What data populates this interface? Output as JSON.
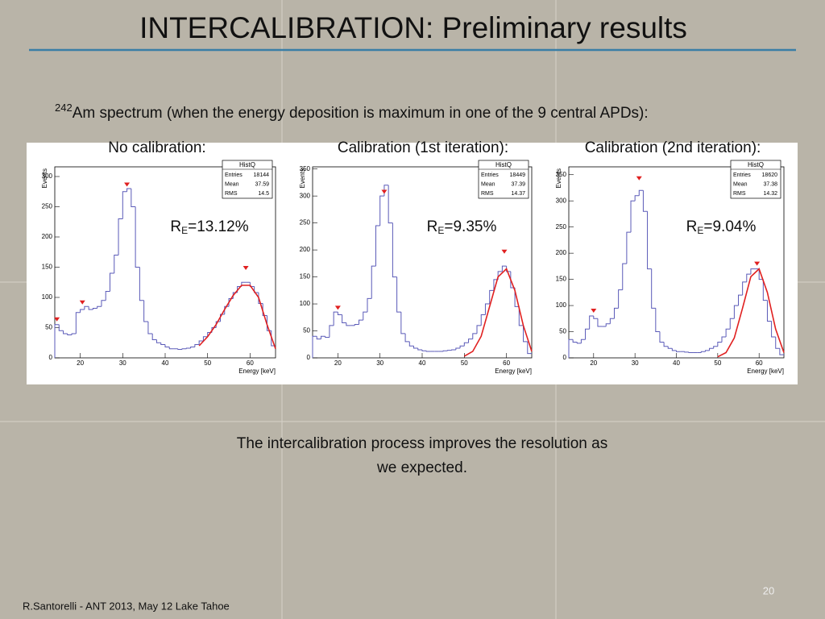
{
  "header": {
    "title": "INTERCALIBRATION: Preliminary results"
  },
  "subtitle": {
    "superscript": "242",
    "text": "Am spectrum (when the energy deposition is maximum in one of the 9 central APDs):"
  },
  "panels": [
    {
      "label": "No calibration:",
      "resolution": {
        "symbol": "R",
        "subscript": "E",
        "value": "=13.12%"
      },
      "chart_data": {
        "type": "histogram",
        "xlabel": "Energy [keV]",
        "ylabel": "Events",
        "stats": {
          "title": "HistQ",
          "rows": [
            [
              "Entries",
              "18144"
            ],
            [
              "Mean",
              "37.59"
            ],
            [
              "RMS",
              "14.5"
            ]
          ]
        },
        "bins": [
          14,
          15,
          16,
          17,
          18,
          19,
          20,
          21,
          22,
          23,
          24,
          25,
          26,
          27,
          28,
          29,
          30,
          31,
          32,
          33,
          34,
          35,
          36,
          37,
          38,
          39,
          40,
          41,
          42,
          43,
          44,
          45,
          46,
          47,
          48,
          49,
          50,
          51,
          52,
          53,
          54,
          55,
          56,
          57,
          58,
          59,
          60,
          61,
          62,
          63,
          64,
          65,
          66
        ],
        "values": [
          55,
          45,
          40,
          38,
          40,
          75,
          80,
          85,
          80,
          82,
          85,
          95,
          110,
          140,
          170,
          230,
          275,
          280,
          250,
          150,
          95,
          60,
          40,
          30,
          25,
          22,
          18,
          15,
          15,
          14,
          15,
          16,
          18,
          22,
          28,
          35,
          42,
          50,
          60,
          72,
          85,
          98,
          108,
          118,
          125,
          125,
          118,
          108,
          90,
          70,
          45,
          20
        ],
        "color": "#5a5ab8",
        "xlim": [
          14,
          66
        ],
        "xticks": [
          20,
          30,
          40,
          50,
          60
        ],
        "ylim": [
          0,
          316
        ],
        "yticks": [
          0,
          50,
          100,
          150,
          200,
          250,
          300
        ],
        "fit": {
          "color": "#e02020",
          "x": [
            48,
            50,
            52,
            54,
            56,
            58,
            60,
            62,
            64,
            66
          ],
          "values": [
            20,
            35,
            55,
            80,
            103,
            120,
            120,
            100,
            55,
            15
          ]
        },
        "peaks": {
          "color": "#e02020",
          "x": [
            14.5,
            20.5,
            31,
            59
          ],
          "values": [
            55,
            83,
            278,
            140
          ]
        }
      }
    },
    {
      "label": "Calibration (1st iteration):",
      "resolution": {
        "symbol": "R",
        "subscript": "E",
        "value": "=9.35%"
      },
      "chart_data": {
        "type": "histogram",
        "xlabel": "Energy [keV]",
        "ylabel": "Events",
        "stats": {
          "title": "HistQ",
          "rows": [
            [
              "Entries",
              "18449"
            ],
            [
              "Mean",
              "37.39"
            ],
            [
              "RMS",
              "14.37"
            ]
          ]
        },
        "bins": [
          14,
          15,
          16,
          17,
          18,
          19,
          20,
          21,
          22,
          23,
          24,
          25,
          26,
          27,
          28,
          29,
          30,
          31,
          32,
          33,
          34,
          35,
          36,
          37,
          38,
          39,
          40,
          41,
          42,
          43,
          44,
          45,
          46,
          47,
          48,
          49,
          50,
          51,
          52,
          53,
          54,
          55,
          56,
          57,
          58,
          59,
          60,
          61,
          62,
          63,
          64,
          65,
          66
        ],
        "values": [
          40,
          35,
          40,
          38,
          60,
          85,
          80,
          65,
          60,
          60,
          62,
          70,
          85,
          110,
          170,
          245,
          300,
          320,
          250,
          150,
          85,
          45,
          30,
          22,
          18,
          15,
          13,
          12,
          12,
          12,
          12,
          13,
          14,
          15,
          18,
          22,
          28,
          35,
          45,
          60,
          80,
          100,
          125,
          145,
          160,
          170,
          160,
          130,
          95,
          60,
          30,
          8
        ],
        "color": "#5a5ab8",
        "xlim": [
          14,
          66
        ],
        "xticks": [
          20,
          30,
          40,
          50,
          60
        ],
        "ylim": [
          0,
          354
        ],
        "yticks": [
          0,
          50,
          100,
          150,
          200,
          250,
          300,
          350
        ],
        "fit": {
          "color": "#e02020",
          "x": [
            50,
            52,
            54,
            56,
            58,
            60,
            62,
            64,
            66
          ],
          "values": [
            3,
            12,
            40,
            95,
            150,
            165,
            125,
            60,
            12
          ]
        },
        "peaks": {
          "color": "#e02020",
          "x": [
            20,
            31,
            59.5
          ],
          "values": [
            83,
            298,
            187
          ]
        }
      }
    },
    {
      "label": "Calibration (2nd iteration):",
      "resolution": {
        "symbol": "R",
        "subscript": "E",
        "value": "=9.04%"
      },
      "chart_data": {
        "type": "histogram",
        "xlabel": "Energy [keV]",
        "ylabel": "Events",
        "stats": {
          "title": "HistQ",
          "rows": [
            [
              "Entries",
              "18620"
            ],
            [
              "Mean",
              "37.38"
            ],
            [
              "RMS",
              "14.32"
            ]
          ]
        },
        "bins": [
          14,
          15,
          16,
          17,
          18,
          19,
          20,
          21,
          22,
          23,
          24,
          25,
          26,
          27,
          28,
          29,
          30,
          31,
          32,
          33,
          34,
          35,
          36,
          37,
          38,
          39,
          40,
          41,
          42,
          43,
          44,
          45,
          46,
          47,
          48,
          49,
          50,
          51,
          52,
          53,
          54,
          55,
          56,
          57,
          58,
          59,
          60,
          61,
          62,
          63,
          64,
          65,
          66
        ],
        "values": [
          35,
          30,
          28,
          35,
          55,
          80,
          75,
          60,
          60,
          65,
          75,
          95,
          130,
          180,
          240,
          300,
          310,
          320,
          280,
          170,
          95,
          50,
          30,
          22,
          18,
          14,
          12,
          12,
          11,
          10,
          10,
          10,
          12,
          14,
          18,
          22,
          30,
          40,
          55,
          75,
          100,
          120,
          145,
          160,
          170,
          170,
          150,
          110,
          70,
          40,
          18,
          6
        ],
        "color": "#5a5ab8",
        "xlim": [
          14,
          66
        ],
        "xticks": [
          20,
          30,
          40,
          50,
          60
        ],
        "ylim": [
          0,
          365
        ],
        "yticks": [
          0,
          50,
          100,
          150,
          200,
          250,
          300,
          350
        ],
        "fit": {
          "color": "#e02020",
          "x": [
            50,
            52,
            54,
            56,
            58,
            60,
            62,
            64,
            66
          ],
          "values": [
            2,
            10,
            38,
            95,
            155,
            170,
            125,
            55,
            10
          ]
        },
        "peaks": {
          "color": "#e02020",
          "x": [
            20,
            31,
            59.5
          ],
          "values": [
            80,
            333,
            170
          ]
        }
      }
    }
  ],
  "conclusion": [
    "The intercalibration process improves  the resolution as",
    "we expected."
  ],
  "footer": {
    "text": "R.Santorelli - ANT 2013, May 12 Lake Tahoe",
    "page": "20"
  }
}
